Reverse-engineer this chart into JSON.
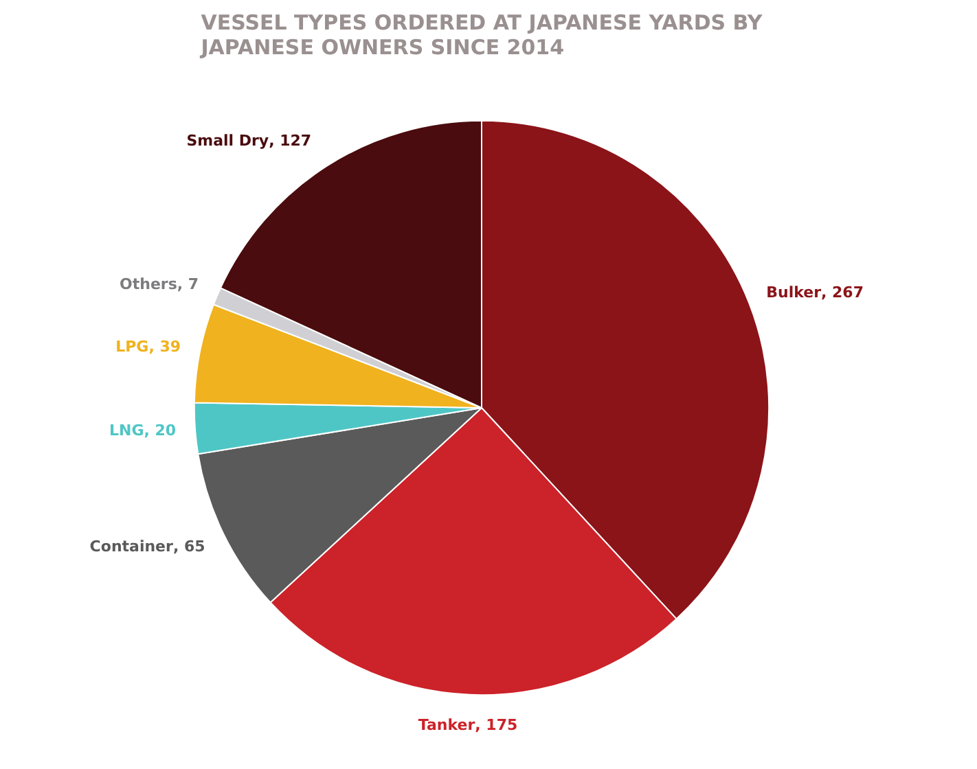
{
  "chart_data": {
    "type": "pie",
    "title": "VESSEL TYPES ORDERED AT JAPANESE YARDS BY\nJAPANESE OWNERS SINCE 2014",
    "categories": [
      "Bulker",
      "Tanker",
      "Container",
      "LNG",
      "LPG",
      "Others",
      "Small Dry"
    ],
    "values": [
      267,
      175,
      65,
      20,
      39,
      7,
      127
    ],
    "colors": [
      "#8b1419",
      "#cc2229",
      "#5a5a5a",
      "#4fc6c6",
      "#f0b21e",
      "#d0d0d4",
      "#4a0c0e"
    ],
    "value_labels": [
      ", 267",
      ", 175",
      ", 65",
      ", 20",
      ", 39",
      ", 7",
      ", 127"
    ],
    "legend": false
  }
}
